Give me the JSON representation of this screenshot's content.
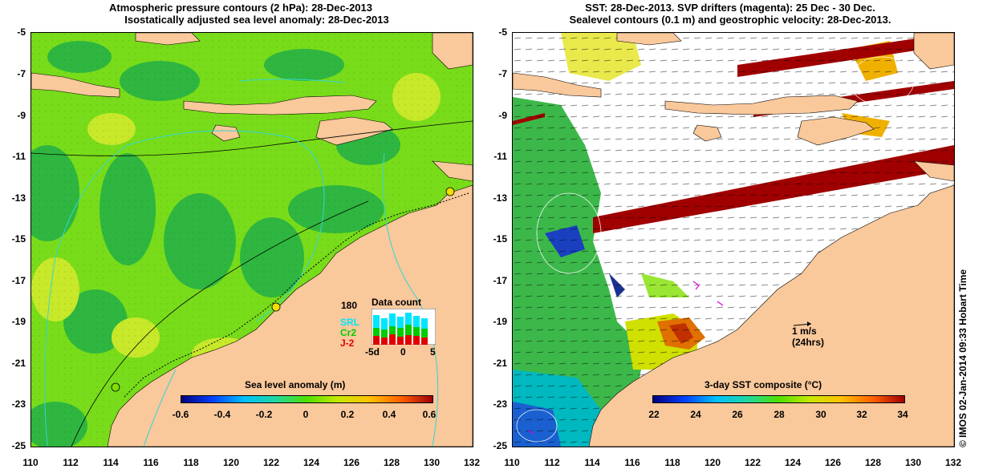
{
  "left_panel": {
    "title_line1": "Atmospheric pressure contours (2 hPa): 28-Dec-2013",
    "title_line2": "Isostatically adjusted sea level anomaly: 28-Dec-2013",
    "colorbar_title": "Sea level anomaly (m)",
    "colorbar_ticks": [
      "-0.6",
      "-0.4",
      "-0.2",
      "0",
      "0.2",
      "0.4",
      "0.6"
    ],
    "inset": {
      "count_label": "180",
      "title": "Data count",
      "legend": [
        "SRL",
        "Cr2",
        "J-2"
      ],
      "legend_colors": [
        "#00e5ff",
        "#00cc00",
        "#e00000"
      ],
      "x_ticks": [
        "-5d",
        "0",
        "5"
      ]
    }
  },
  "right_panel": {
    "title_line1": "SST: 28-Dec-2013. SVP drifters (magenta): 25 Dec - 30 Dec.",
    "title_line2": "Sealevel contours (0.1 m) and geostrophic velocity: 28-Dec-2013.",
    "colorbar_title": "3-day SST composite (°C)",
    "colorbar_ticks": [
      "22",
      "24",
      "26",
      "28",
      "30",
      "32",
      "34"
    ],
    "scale_label_1": "1 m/s",
    "scale_label_2": "(24hrs)"
  },
  "y_ticks": [
    "-5",
    "-7",
    "-9",
    "-11",
    "-13",
    "-15",
    "-17",
    "-19",
    "-21",
    "-23",
    "-25"
  ],
  "x_ticks": [
    "110",
    "112",
    "114",
    "116",
    "118",
    "120",
    "122",
    "124",
    "126",
    "128",
    "130",
    "132"
  ],
  "credit": "© IMOS 02-Jan-2014 09:33 Hobart Time",
  "colors": {
    "land": "#f9c89b",
    "ocean_green": "#7fe000",
    "ocean_dark": "#2fb83a",
    "contour_cyan": "#33d6d6",
    "sst_red": "#a00000",
    "water_white": "#ffffff"
  }
}
